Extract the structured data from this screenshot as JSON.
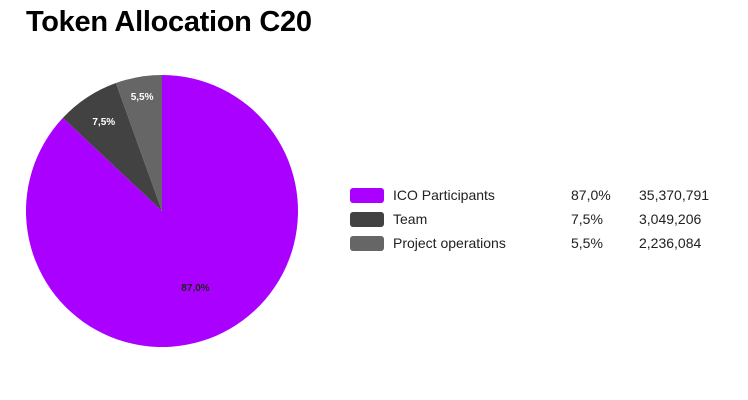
{
  "chart_data": {
    "type": "pie",
    "title": "Token Allocation C20",
    "series": [
      {
        "name": "ICO Participants",
        "value": 87.0,
        "percent_label": "87,0%",
        "amount": "35,370,791",
        "color": "#aa00ff",
        "label_color": "#212121"
      },
      {
        "name": "Team",
        "value": 7.5,
        "percent_label": "7,5%",
        "amount": "3,049,206",
        "color": "#424242",
        "label_color": "#ffffff"
      },
      {
        "name": "Project operations",
        "value": 5.5,
        "percent_label": "5,5%",
        "amount": "2,236,084",
        "color": "#666666",
        "label_color": "#ffffff"
      }
    ],
    "start": "12 o'clock",
    "direction": "clockwise",
    "legend_position": "right"
  }
}
